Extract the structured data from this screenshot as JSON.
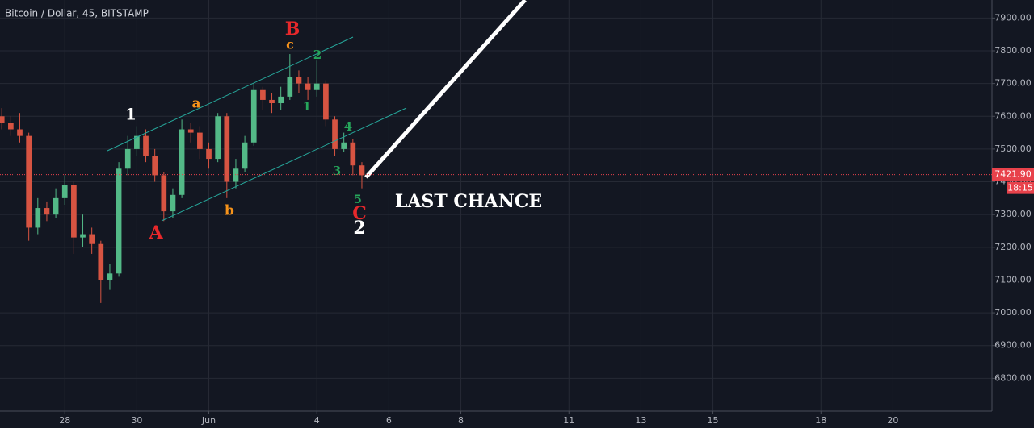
{
  "chart_data": {
    "type": "candlestick",
    "title": "Bitcoin / Dollar, 45, BITSTAMP",
    "x": [
      26.25,
      26.5,
      26.75,
      27,
      27.25,
      27.5,
      27.75,
      28,
      28.25,
      28.5,
      28.75,
      29,
      29.25,
      29.5,
      29.75,
      30,
      30.25,
      30.5,
      30.75,
      31,
      31.25,
      31.5,
      31.75,
      32,
      32.25,
      32.5,
      32.75,
      33,
      33.25,
      33.5,
      33.75,
      34,
      34.25,
      34.5,
      34.75,
      35,
      35.25,
      35.5,
      35.75,
      36,
      36.25
    ],
    "open": [
      7600,
      7580,
      7560,
      7540,
      7260,
      7320,
      7300,
      7350,
      7390,
      7230,
      7240,
      7210,
      7100,
      7120,
      7440,
      7500,
      7540,
      7480,
      7420,
      7310,
      7360,
      7560,
      7550,
      7500,
      7470,
      7600,
      7400,
      7440,
      7520,
      7680,
      7650,
      7640,
      7660,
      7720,
      7700,
      7680,
      7700,
      7590,
      7500,
      7520,
      7450
    ],
    "high": [
      7625,
      7600,
      7610,
      7550,
      7350,
      7340,
      7380,
      7420,
      7400,
      7300,
      7260,
      7220,
      7150,
      7460,
      7540,
      7570,
      7560,
      7500,
      7430,
      7380,
      7590,
      7580,
      7570,
      7520,
      7610,
      7610,
      7470,
      7540,
      7700,
      7690,
      7670,
      7690,
      7790,
      7740,
      7720,
      7770,
      7710,
      7600,
      7550,
      7530,
      7460
    ],
    "low": [
      7560,
      7540,
      7520,
      7220,
      7240,
      7280,
      7290,
      7330,
      7180,
      7200,
      7180,
      7030,
      7070,
      7110,
      7420,
      7480,
      7460,
      7400,
      7280,
      7290,
      7350,
      7520,
      7470,
      7440,
      7460,
      7350,
      7380,
      7430,
      7510,
      7620,
      7610,
      7620,
      7650,
      7670,
      7650,
      7660,
      7570,
      7480,
      7490,
      7420,
      7380
    ],
    "close": [
      7580,
      7560,
      7540,
      7260,
      7320,
      7300,
      7350,
      7390,
      7230,
      7240,
      7210,
      7100,
      7120,
      7440,
      7500,
      7540,
      7480,
      7420,
      7310,
      7360,
      7560,
      7550,
      7500,
      7470,
      7600,
      7400,
      7440,
      7520,
      7680,
      7650,
      7640,
      7660,
      7720,
      7700,
      7680,
      7700,
      7590,
      7500,
      7520,
      7450,
      7420
    ],
    "up_color": "#53b987",
    "down_color": "#d75442",
    "xlim": [
      26.2,
      53.75
    ],
    "xticks": [
      {
        "value": 28,
        "label": "28"
      },
      {
        "value": 30,
        "label": "30"
      },
      {
        "value": 32,
        "label": "Jun"
      },
      {
        "value": 35,
        "label": "4"
      },
      {
        "value": 37,
        "label": "6"
      },
      {
        "value": 39,
        "label": "8"
      },
      {
        "value": 42,
        "label": "11"
      },
      {
        "value": 44,
        "label": "13"
      },
      {
        "value": 46,
        "label": "15"
      },
      {
        "value": 49,
        "label": "18"
      },
      {
        "value": 51,
        "label": "20"
      }
    ],
    "ylim": [
      6700,
      7955
    ],
    "yticks": [
      {
        "value": 6800,
        "label": "6800.00"
      },
      {
        "value": 6900,
        "label": "6900.00"
      },
      {
        "value": 7000,
        "label": "7000.00"
      },
      {
        "value": 7100,
        "label": "7100.00"
      },
      {
        "value": 7200,
        "label": "7200.00"
      },
      {
        "value": 7300,
        "label": "7300.00"
      },
      {
        "value": 7400,
        "label": "7400.00"
      },
      {
        "value": 7500,
        "label": "7500.00"
      },
      {
        "value": 7600,
        "label": "7600.00"
      },
      {
        "value": 7700,
        "label": "7700.00"
      },
      {
        "value": 7800,
        "label": "7800.00"
      },
      {
        "value": 7900,
        "label": "7900.00"
      }
    ],
    "grid": true,
    "last_price": {
      "value": 7421.9,
      "label": "7421.90"
    },
    "countdown": "18:15",
    "annotations": [
      {
        "text": "1",
        "color": "#ffffff"
      },
      {
        "text": "a",
        "color": "#f7931a"
      },
      {
        "text": "A",
        "color": "#e8282b"
      },
      {
        "text": "b",
        "color": "#f7931a"
      },
      {
        "text": "B",
        "color": "#e8282b"
      },
      {
        "text": "c",
        "color": "#f7931a"
      },
      {
        "text": "2",
        "color": "#26a65b"
      },
      {
        "text": "1",
        "color": "#26a65b"
      },
      {
        "text": "4",
        "color": "#26a65b"
      },
      {
        "text": "3",
        "color": "#26a65b"
      },
      {
        "text": "5",
        "color": "#26a65b"
      },
      {
        "text": "C",
        "color": "#e8282b"
      },
      {
        "text": "2",
        "color": "#ffffff"
      },
      {
        "text": "LAST CHANCE",
        "color": "#ffffff"
      }
    ]
  }
}
